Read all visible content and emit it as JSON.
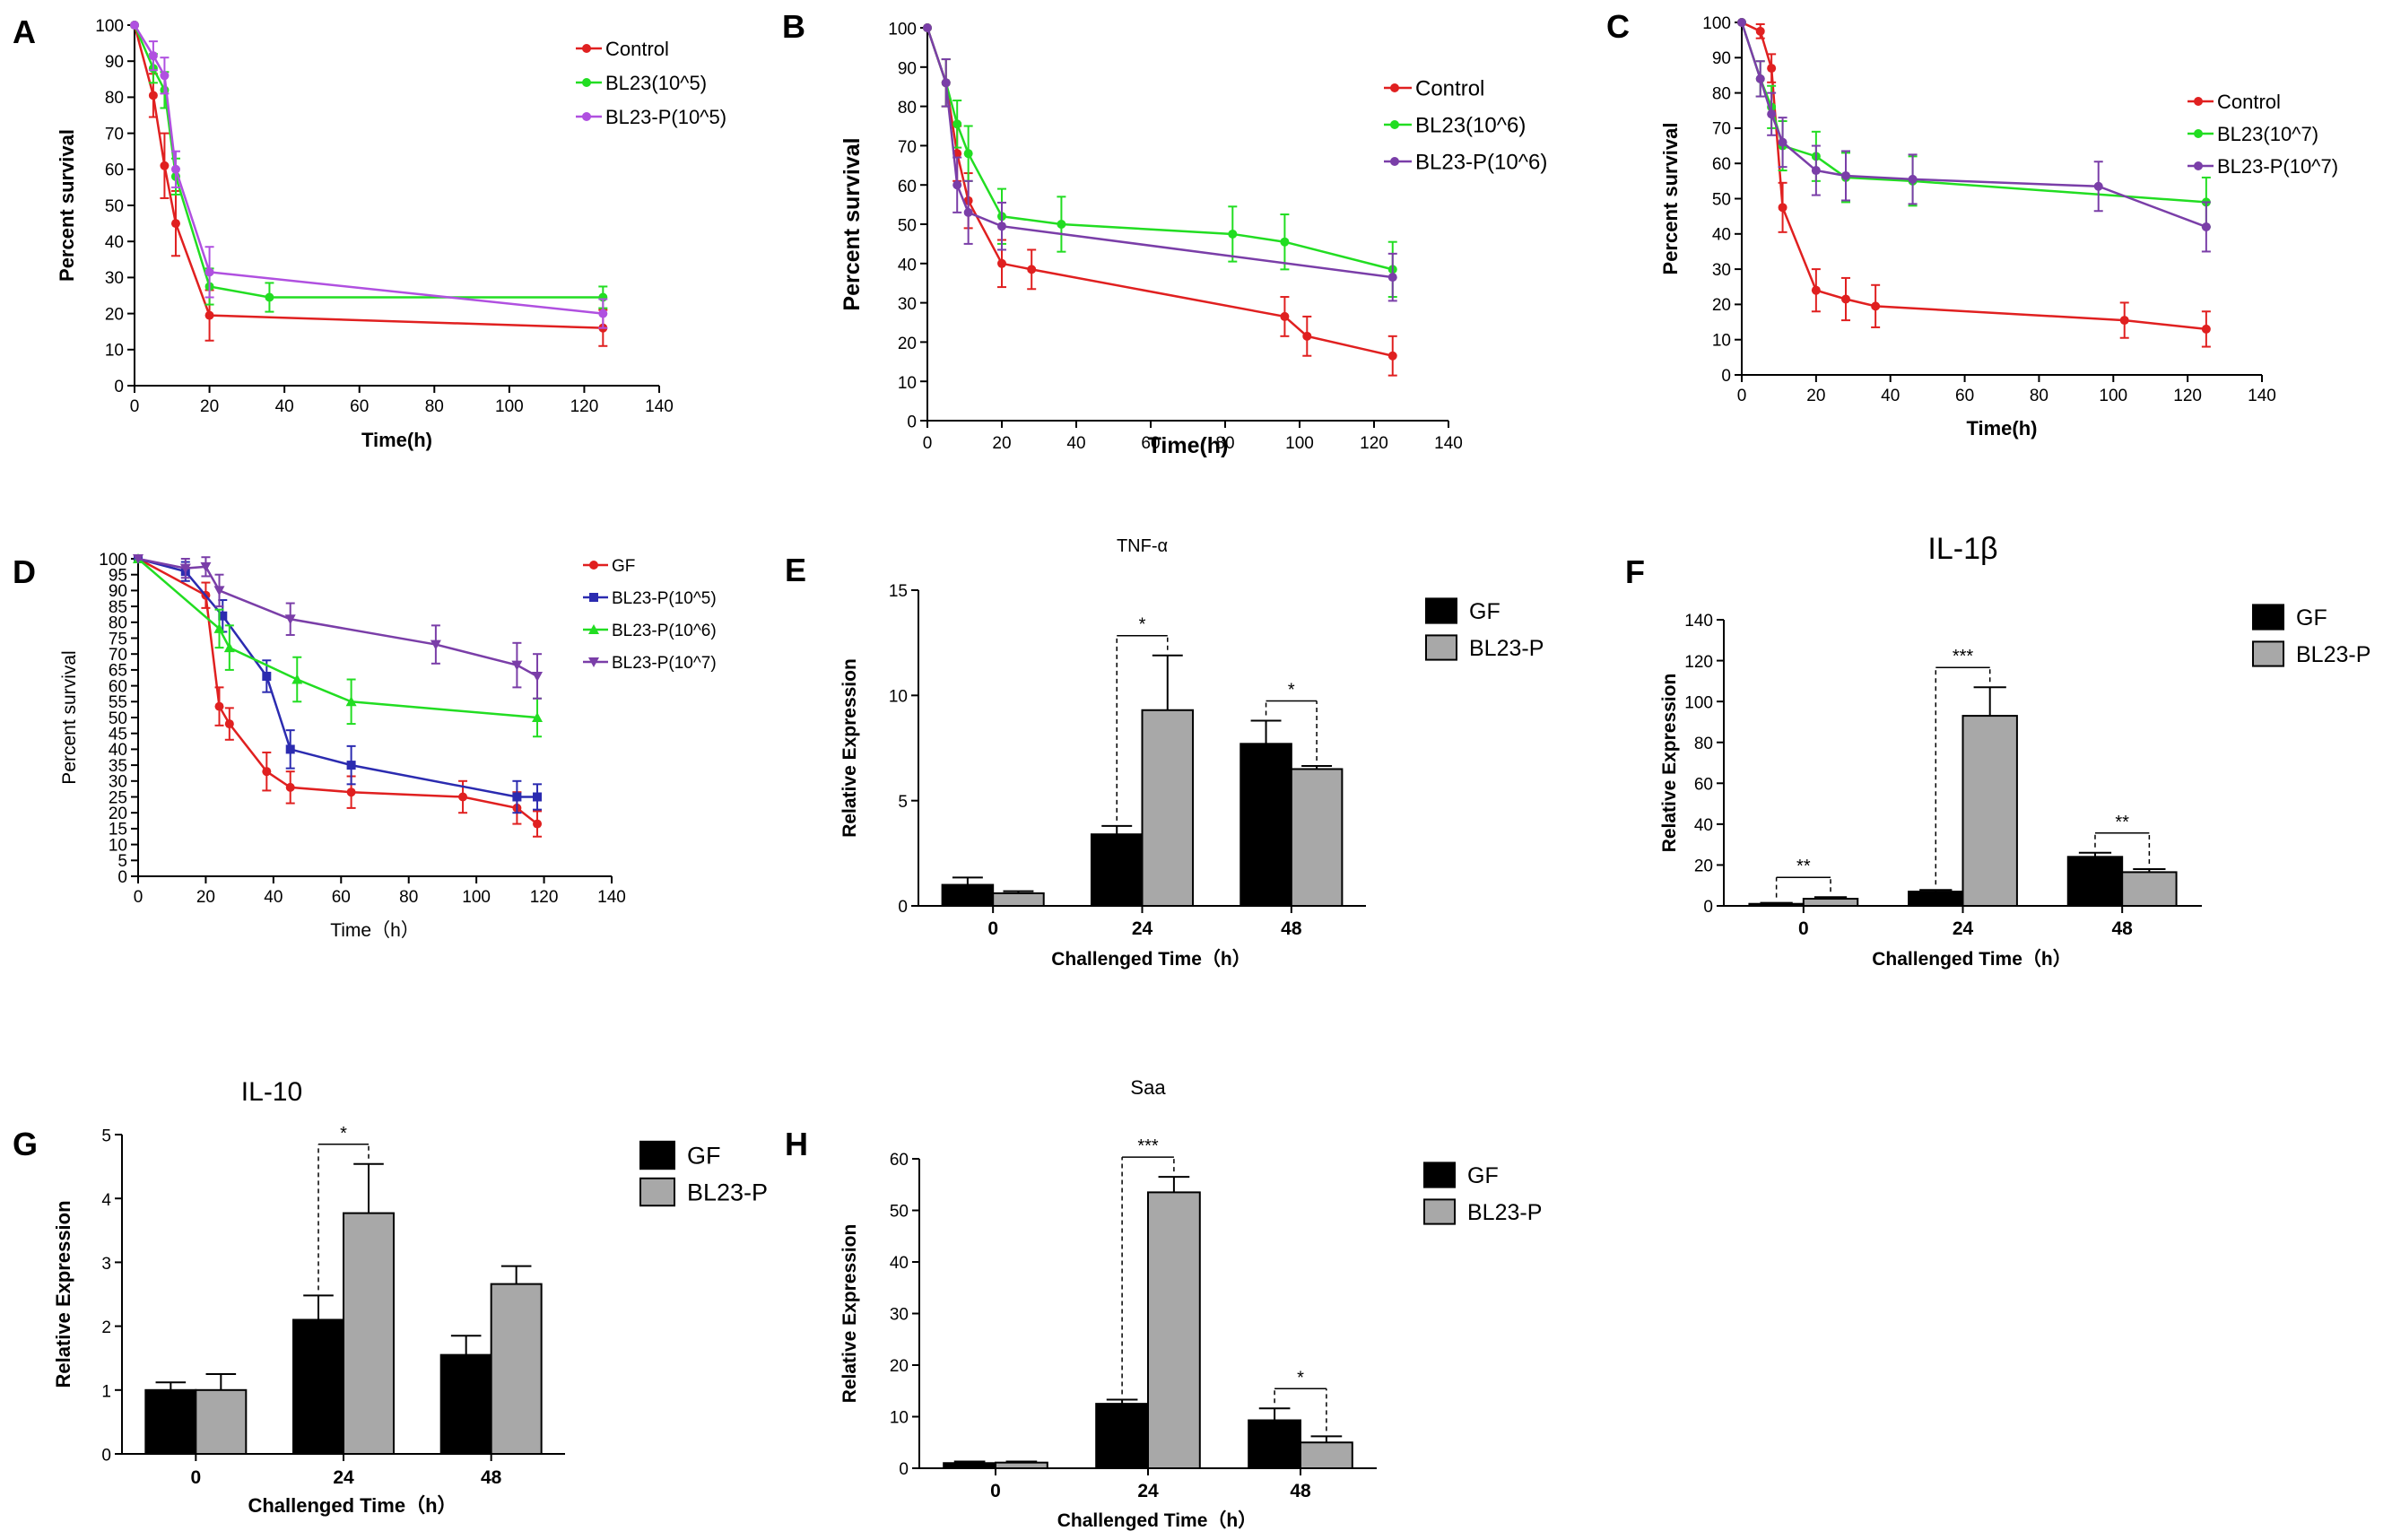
{
  "colors": {
    "red": "#e02020",
    "green": "#22dd22",
    "purple_light": "#b050e0",
    "purple": "#7a3ea8",
    "blue": "#2b2bb0",
    "black": "#000000",
    "gray": "#a8a8a8"
  },
  "chart_data": [
    {
      "panel": "A",
      "type": "line",
      "title": "",
      "xlabel": "Time(h)",
      "ylabel": "Percent survival",
      "xlim": [
        0,
        140
      ],
      "ylim": [
        0,
        100
      ],
      "xticks": [
        "0",
        "20",
        "40",
        "60",
        "80",
        "100",
        "120",
        "140"
      ],
      "yticks": [
        "0",
        "10",
        "20",
        "30",
        "40",
        "50",
        "60",
        "70",
        "80",
        "90",
        "100"
      ],
      "series": [
        {
          "name": "Control",
          "color": "red",
          "marker": "circle",
          "x": [
            0,
            5,
            8,
            11,
            20,
            125
          ],
          "y": [
            100,
            80.5,
            61,
            45,
            19.5,
            16
          ],
          "err": [
            0,
            6,
            9,
            9,
            7,
            5
          ]
        },
        {
          "name": "BL23(10^5)",
          "color": "green",
          "marker": "circle",
          "x": [
            0,
            5,
            8,
            11,
            20,
            36,
            125
          ],
          "y": [
            100,
            88,
            82,
            58,
            27.5,
            24.5,
            24.5
          ],
          "err": [
            0,
            4,
            5,
            5,
            5,
            4,
            3
          ]
        },
        {
          "name": "BL23-P(10^5)",
          "color": "purple_light",
          "marker": "circle",
          "x": [
            0,
            5,
            8,
            11,
            20,
            125
          ],
          "y": [
            100,
            91.5,
            86,
            60,
            31.5,
            20
          ],
          "err": [
            0,
            4,
            5,
            5,
            7,
            4
          ]
        }
      ]
    },
    {
      "panel": "B",
      "type": "line",
      "title": "",
      "xlabel": "Time(h)",
      "ylabel": "Percent survival",
      "xlim": [
        0,
        140
      ],
      "ylim": [
        0,
        100
      ],
      "xticks": [
        "0",
        "20",
        "40",
        "60",
        "80",
        "100",
        "120",
        "140"
      ],
      "yticks": [
        "0",
        "10",
        "20",
        "30",
        "40",
        "50",
        "60",
        "70",
        "80",
        "90",
        "100"
      ],
      "series": [
        {
          "name": "Control",
          "color": "red",
          "marker": "circle",
          "x": [
            0,
            5,
            8,
            11,
            20,
            28,
            96,
            102,
            125
          ],
          "y": [
            100,
            86,
            68,
            56,
            40,
            38.5,
            26.5,
            21.5,
            16.5
          ],
          "err": [
            0,
            6,
            7,
            7,
            6,
            5,
            5,
            5,
            5
          ]
        },
        {
          "name": "BL23(10^6)",
          "color": "green",
          "marker": "circle",
          "x": [
            0,
            5,
            8,
            11,
            20,
            36,
            82,
            96,
            125
          ],
          "y": [
            100,
            86,
            75.5,
            68,
            52,
            50,
            47.5,
            45.5,
            38.5
          ],
          "err": [
            0,
            6,
            6,
            7,
            7,
            7,
            7,
            7,
            7
          ]
        },
        {
          "name": "BL23-P(10^6)",
          "color": "purple",
          "marker": "circle",
          "x": [
            0,
            5,
            8,
            11,
            20,
            125
          ],
          "y": [
            100,
            86,
            60,
            53,
            49.5,
            36.5
          ],
          "err": [
            0,
            6,
            7,
            8,
            6,
            6
          ]
        }
      ]
    },
    {
      "panel": "C",
      "type": "line",
      "title": "",
      "xlabel": "Time(h)",
      "ylabel": "Percent survival",
      "xlim": [
        0,
        140
      ],
      "ylim": [
        0,
        100
      ],
      "xticks": [
        "0",
        "20",
        "40",
        "60",
        "80",
        "100",
        "120",
        "140"
      ],
      "yticks": [
        "0",
        "10",
        "20",
        "30",
        "40",
        "50",
        "60",
        "70",
        "80",
        "90",
        "100"
      ],
      "series": [
        {
          "name": "Control",
          "color": "red",
          "marker": "circle",
          "x": [
            0,
            5,
            8,
            11,
            20,
            28,
            36,
            103,
            125
          ],
          "y": [
            100,
            97.5,
            87,
            47.5,
            24,
            21.5,
            19.5,
            15.5,
            13
          ],
          "err": [
            0,
            2,
            4,
            7,
            6,
            6,
            6,
            5,
            5
          ]
        },
        {
          "name": "BL23(10^7)",
          "color": "green",
          "marker": "circle",
          "x": [
            0,
            5,
            8,
            11,
            20,
            28,
            46,
            125
          ],
          "y": [
            100,
            84,
            76,
            65,
            62,
            56,
            55,
            49
          ],
          "err": [
            0,
            5,
            6,
            7,
            7,
            7,
            7,
            7
          ]
        },
        {
          "name": "BL23-P(10^7)",
          "color": "purple",
          "marker": "circle",
          "x": [
            0,
            5,
            8,
            11,
            20,
            28,
            46,
            96,
            125
          ],
          "y": [
            100,
            84,
            74,
            66,
            58,
            56.5,
            55.5,
            53.5,
            42
          ],
          "err": [
            0,
            5,
            6,
            7,
            7,
            7,
            7,
            7,
            7
          ]
        }
      ]
    },
    {
      "panel": "D",
      "type": "line",
      "title": "",
      "xlabel": "Time（h）",
      "ylabel": "Percent survival",
      "xlim": [
        0,
        140
      ],
      "ylim": [
        0,
        100
      ],
      "xticks": [
        "0",
        "20",
        "40",
        "60",
        "80",
        "100",
        "120",
        "140"
      ],
      "yticks": [
        "0",
        "5",
        "10",
        "15",
        "20",
        "25",
        "30",
        "35",
        "40",
        "45",
        "50",
        "55",
        "60",
        "65",
        "70",
        "75",
        "80",
        "85",
        "90",
        "95",
        "100"
      ],
      "series": [
        {
          "name": "GF",
          "color": "red",
          "marker": "circle",
          "x": [
            0,
            20,
            24,
            27,
            38,
            45,
            63,
            96,
            112,
            118
          ],
          "y": [
            100,
            88.5,
            53.5,
            48,
            33,
            28,
            26.5,
            25,
            21.5,
            16.5
          ],
          "err": [
            0,
            4,
            6,
            5,
            6,
            5,
            5,
            5,
            5,
            4
          ]
        },
        {
          "name": "BL23-P(10^5)",
          "color": "blue",
          "marker": "square",
          "x": [
            0,
            14,
            25,
            38,
            45,
            63,
            112,
            118
          ],
          "y": [
            100,
            96,
            82,
            63,
            40,
            35,
            25,
            25
          ],
          "err": [
            0,
            3,
            5,
            5,
            6,
            6,
            5,
            4
          ]
        },
        {
          "name": "BL23-P(10^6)",
          "color": "green",
          "marker": "triangle",
          "x": [
            0,
            24,
            27,
            47,
            63,
            118
          ],
          "y": [
            100,
            78,
            72,
            62,
            55,
            50
          ],
          "err": [
            0,
            6,
            7,
            7,
            7,
            6
          ]
        },
        {
          "name": "BL23-P(10^7)",
          "color": "purple",
          "marker": "triangle-down",
          "x": [
            0,
            14,
            20,
            24,
            45,
            88,
            112,
            118
          ],
          "y": [
            100,
            97,
            97.5,
            90,
            81,
            73,
            66.5,
            63
          ],
          "err": [
            0,
            3,
            3,
            5,
            5,
            6,
            7,
            7
          ]
        }
      ]
    },
    {
      "panel": "E",
      "type": "bar",
      "title": "TNF-α",
      "xlabel": "Challenged Time（h）",
      "ylabel": "Relative Expression",
      "categories": [
        "0",
        "24",
        "48"
      ],
      "ylim": [
        0,
        15
      ],
      "yticks": [
        "0",
        "5",
        "10",
        "15"
      ],
      "series": [
        {
          "name": "GF",
          "color": "black",
          "values": [
            1.0,
            3.4,
            7.7
          ],
          "err": [
            0.35,
            0.4,
            1.1
          ]
        },
        {
          "name": "BL23-P",
          "color": "gray",
          "values": [
            0.6,
            9.3,
            6.5
          ],
          "err": [
            0.1,
            2.6,
            0.15
          ]
        }
      ],
      "significance": [
        {
          "group1": "24",
          "bracket": "GF24 vs BL23-P24",
          "label": "*"
        },
        {
          "group1": "48",
          "bracket": "GF48 vs BL23-P48",
          "label": "*"
        }
      ]
    },
    {
      "panel": "F",
      "type": "bar",
      "title": "IL-1β",
      "xlabel": "Challenged Time（h）",
      "ylabel": "Relative Expression",
      "categories": [
        "0",
        "24",
        "48"
      ],
      "ylim": [
        0,
        140
      ],
      "yticks": [
        "0",
        "20",
        "40",
        "60",
        "80",
        "100",
        "120",
        "140"
      ],
      "series": [
        {
          "name": "GF",
          "color": "black",
          "values": [
            1.0,
            7.0,
            24.0
          ],
          "err": [
            0.5,
            0.8,
            2.0
          ]
        },
        {
          "name": "BL23-P",
          "color": "gray",
          "values": [
            3.5,
            93.0,
            16.5
          ],
          "err": [
            0.8,
            14.0,
            1.5
          ]
        }
      ],
      "significance": [
        {
          "group1": "0",
          "bracket": "GF0 vs BL23-P0",
          "label": "**"
        },
        {
          "group1": "24",
          "bracket": "GF24 vs BL23-P24",
          "label": "***"
        },
        {
          "group1": "48",
          "bracket": "GF48 vs BL23-P48",
          "label": "**"
        }
      ]
    },
    {
      "panel": "G",
      "type": "bar",
      "title": "IL-10",
      "xlabel": "Challenged Time（h）",
      "ylabel": "Relative Expression",
      "categories": [
        "0",
        "24",
        "48"
      ],
      "ylim": [
        0,
        5
      ],
      "yticks": [
        "0",
        "1",
        "2",
        "3",
        "4",
        "5"
      ],
      "series": [
        {
          "name": "GF",
          "color": "black",
          "values": [
            1.0,
            2.1,
            1.55
          ],
          "err": [
            0.12,
            0.38,
            0.3
          ]
        },
        {
          "name": "BL23-P",
          "color": "gray",
          "values": [
            1.0,
            3.77,
            2.66
          ],
          "err": [
            0.25,
            0.77,
            0.28
          ]
        }
      ],
      "significance": [
        {
          "group1": "24",
          "bracket": "GF24 vs BL23-P24",
          "label": "*"
        }
      ]
    },
    {
      "panel": "H",
      "type": "bar",
      "title": "Saa",
      "xlabel": "Challenged Time（h）",
      "ylabel": "Relative Expression",
      "categories": [
        "0",
        "24",
        "48"
      ],
      "ylim": [
        0,
        60
      ],
      "yticks": [
        "0",
        "10",
        "20",
        "30",
        "40",
        "50",
        "60"
      ],
      "series": [
        {
          "name": "GF",
          "color": "black",
          "values": [
            1.0,
            12.5,
            9.3
          ],
          "err": [
            0.3,
            0.8,
            2.3
          ]
        },
        {
          "name": "BL23-P",
          "color": "gray",
          "values": [
            1.1,
            53.5,
            5.0
          ],
          "err": [
            0.2,
            3.0,
            1.2
          ]
        }
      ],
      "significance": [
        {
          "group1": "24",
          "bracket": "GF24 vs BL23-P24",
          "label": "***"
        },
        {
          "group1": "48",
          "bracket": "GF48 vs BL23-P48",
          "label": "*"
        }
      ]
    }
  ]
}
